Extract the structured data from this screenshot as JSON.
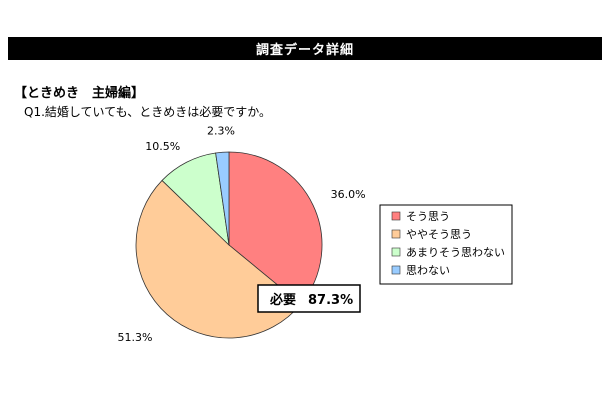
{
  "header": {
    "title": "調査データ詳細"
  },
  "section": {
    "heading": "【ときめき　主婦編】",
    "question": "Q1.結婚していても、ときめきは必要ですか。"
  },
  "callout": {
    "label": "必要",
    "value": "87.3%"
  },
  "chart_data": {
    "type": "pie",
    "categories": [
      "そう思う",
      "ややそう思う",
      "あまりそう思わない",
      "思わない"
    ],
    "values": [
      36.0,
      51.3,
      10.5,
      2.3
    ],
    "labels": [
      "36.0%",
      "51.3%",
      "10.5%",
      "2.3%"
    ],
    "colors": [
      "#FF8080",
      "#FFCC99",
      "#CCFFCC",
      "#99CCFF"
    ],
    "start_angle": "12 o'clock",
    "direction": "clockwise",
    "legend_position": "right"
  }
}
